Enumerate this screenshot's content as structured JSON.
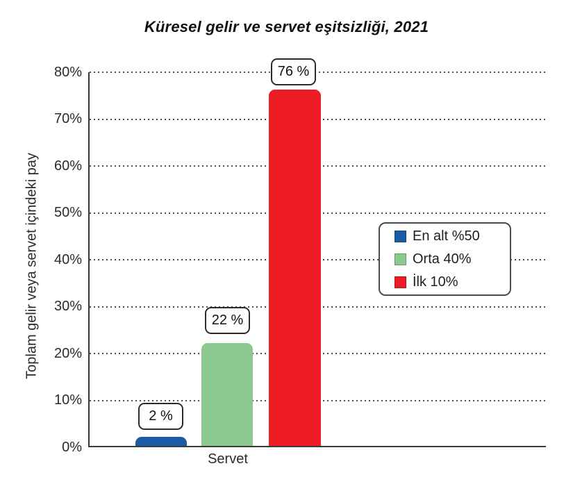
{
  "title": "Küresel gelir ve servet eşitsizliği, 2021",
  "y_axis": {
    "label": "Toplam gelir veya servet içindeki pay",
    "ticks": [
      "80%",
      "70%",
      "60%",
      "50%",
      "40%",
      "30%",
      "20%",
      "10%",
      "0%"
    ]
  },
  "x_axis": {
    "label": "Servet"
  },
  "legend": {
    "items": [
      {
        "label": "En alt %50",
        "color": "#1a5ba6"
      },
      {
        "label": "Orta 40%",
        "color": "#8bc98f"
      },
      {
        "label": "İlk 10%",
        "color": "#ed1c24"
      }
    ]
  },
  "bars": [
    {
      "name": "En alt %50",
      "value": 2,
      "value_label": "2 %",
      "color": "#1a5ba6"
    },
    {
      "name": "Orta 40%",
      "value": 22,
      "value_label": "22 %",
      "color": "#8bc98f"
    },
    {
      "name": "İlk 10%",
      "value": 76,
      "value_label": "76 %",
      "color": "#ed1c24"
    }
  ],
  "chart_data": {
    "type": "bar",
    "title": "Küresel gelir ve servet eşitsizliği, 2021",
    "categories": [
      "Servet"
    ],
    "series": [
      {
        "name": "En alt %50",
        "values": [
          2
        ],
        "color": "#1a5ba6"
      },
      {
        "name": "Orta 40%",
        "values": [
          22
        ],
        "color": "#8bc98f"
      },
      {
        "name": "İlk 10%",
        "values": [
          76
        ],
        "color": "#ed1c24"
      }
    ],
    "data_labels": [
      "2 %",
      "22 %",
      "76 %"
    ],
    "xlabel": "Servet",
    "ylabel": "Toplam gelir veya servet içindeki pay",
    "ylim": [
      0,
      80
    ],
    "ytick_step": 10,
    "ytick_format": "percent",
    "grid": "horizontal dotted",
    "legend_position": "middle-right"
  }
}
